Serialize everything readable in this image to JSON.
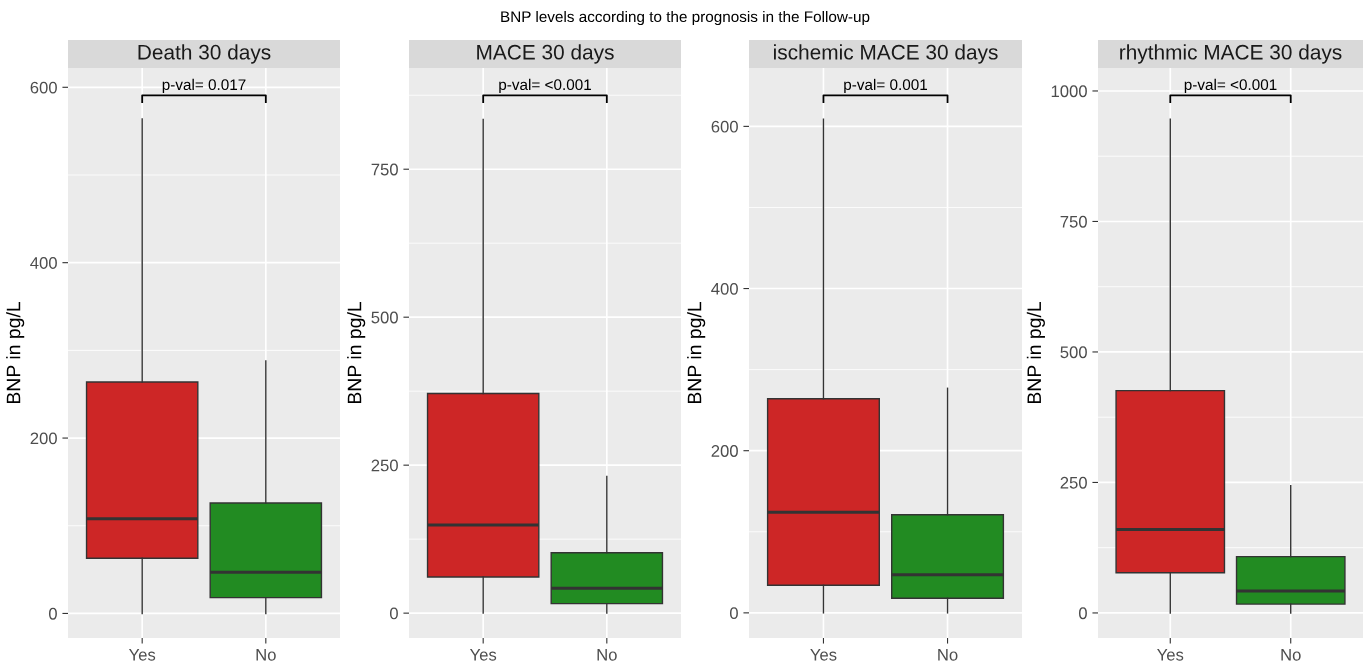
{
  "chart_data": [
    {
      "type": "box",
      "title": "Death 30 days",
      "ylabel": "BNP in pg/L",
      "categories": [
        "Yes",
        "No"
      ],
      "colors": [
        "#cd2626",
        "#228b22"
      ],
      "boxes": [
        {
          "low": 0,
          "q1": 63,
          "median": 108,
          "q3": 264,
          "high": 564
        },
        {
          "low": 0,
          "q1": 18,
          "median": 47,
          "q3": 126,
          "high": 288
        }
      ],
      "ylim": [
        -28,
        622
      ],
      "yticks": [
        0,
        200,
        400,
        600
      ],
      "grid": true,
      "annotations": [
        "BNP levels according to the prognosis in the Follow-up",
        "p-val= 0.017"
      ]
    },
    {
      "type": "box",
      "title": "MACE 30 days",
      "ylabel": "BNP in pg/L",
      "categories": [
        "Yes",
        "No"
      ],
      "colors": [
        "#cd2626",
        "#228b22"
      ],
      "boxes": [
        {
          "low": 0,
          "q1": 61,
          "median": 149,
          "q3": 371,
          "high": 834
        },
        {
          "low": 0,
          "q1": 16,
          "median": 42,
          "q3": 102,
          "high": 231
        }
      ],
      "ylim": [
        -42,
        921
      ],
      "yticks": [
        0,
        250,
        500,
        750
      ],
      "grid": true,
      "annotations": [
        "p-val= <0.001"
      ]
    },
    {
      "type": "box",
      "title": "ischemic MACE 30 days",
      "ylabel": "BNP in pg/L",
      "categories": [
        "Yes",
        "No"
      ],
      "colors": [
        "#cd2626",
        "#228b22"
      ],
      "boxes": [
        {
          "low": 0,
          "q1": 34,
          "median": 124,
          "q3": 264,
          "high": 609
        },
        {
          "low": 0,
          "q1": 18,
          "median": 47,
          "q3": 121,
          "high": 277
        }
      ],
      "ylim": [
        -31,
        672
      ],
      "yticks": [
        0,
        200,
        400,
        600
      ],
      "grid": true,
      "annotations": [
        "p-val= 0.001"
      ]
    },
    {
      "type": "box",
      "title": "rhythmic MACE 30 days",
      "ylabel": "BNP in pg/L",
      "categories": [
        "Yes",
        "No"
      ],
      "colors": [
        "#cd2626",
        "#228b22"
      ],
      "boxes": [
        {
          "low": 0,
          "q1": 77,
          "median": 160,
          "q3": 426,
          "high": 946
        },
        {
          "low": 0,
          "q1": 17,
          "median": 42,
          "q3": 108,
          "high": 244
        }
      ],
      "ylim": [
        -48,
        1044
      ],
      "yticks": [
        0,
        250,
        500,
        750,
        1000
      ],
      "grid": true,
      "annotations": [
        "p-val= <0.001"
      ]
    }
  ]
}
